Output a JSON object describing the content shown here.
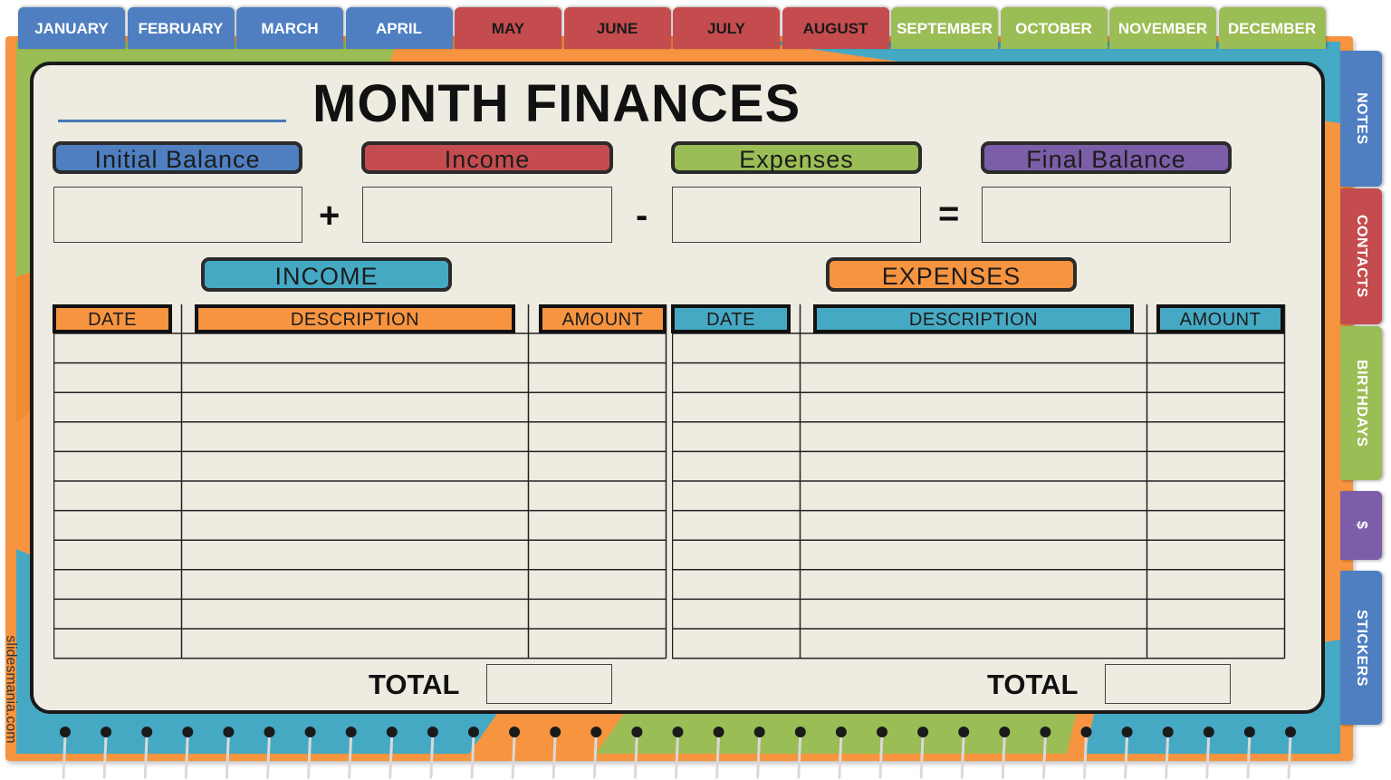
{
  "month_tabs": [
    {
      "label": "JANUARY",
      "color": "#4f7fc1"
    },
    {
      "label": "FEBRUARY",
      "color": "#4f7fc1"
    },
    {
      "label": "MARCH",
      "color": "#4f7fc1"
    },
    {
      "label": "APRIL",
      "color": "#4f7fc1"
    },
    {
      "label": "MAY",
      "color": "#c44c4f"
    },
    {
      "label": "JUNE",
      "color": "#c44c4f"
    },
    {
      "label": "JULY",
      "color": "#c44c4f"
    },
    {
      "label": "AUGUST",
      "color": "#c44c4f"
    },
    {
      "label": "SEPTEMBER",
      "color": "#9bbd55"
    },
    {
      "label": "OCTOBER",
      "color": "#9bbd55"
    },
    {
      "label": "NOVEMBER",
      "color": "#9bbd55"
    },
    {
      "label": "DECEMBER",
      "color": "#9bbd55"
    }
  ],
  "side_tabs": [
    {
      "label": "NOTES",
      "color": "#4f7fc1"
    },
    {
      "label": "CONTACTS",
      "color": "#c44c4f"
    },
    {
      "label": "BIRTHDAYS",
      "color": "#9bbd55"
    },
    {
      "label": "$",
      "color": "#7b5ea7"
    },
    {
      "label": "STICKERS",
      "color": "#4f7fc1"
    }
  ],
  "page": {
    "title": "MONTH FINANCES"
  },
  "summary": {
    "initial_balance_label": "Initial Balance",
    "income_label": "Income",
    "expenses_label": "Expenses",
    "final_balance_label": "Final Balance",
    "plus": "+",
    "minus": "-",
    "equals": "=",
    "initial_balance_value": "",
    "income_value": "",
    "expenses_value": "",
    "final_balance_value": ""
  },
  "income_table": {
    "title": "INCOME",
    "columns": [
      "DATE",
      "DESCRIPTION",
      "AMOUNT"
    ],
    "rows": 11,
    "total_label": "TOTAL",
    "total_value": ""
  },
  "expenses_table": {
    "title": "EXPENSES",
    "columns": [
      "DATE",
      "DESCRIPTION",
      "AMOUNT"
    ],
    "rows": 11,
    "total_label": "TOTAL",
    "total_value": ""
  },
  "colors": {
    "blue": "#4f7fc1",
    "red": "#c44c4f",
    "green": "#9bbd55",
    "purple": "#7b5ea7",
    "orange": "#f7943f",
    "teal": "#46a9c4",
    "page": "#eeebe1"
  },
  "watermark": "slidesmania.com"
}
